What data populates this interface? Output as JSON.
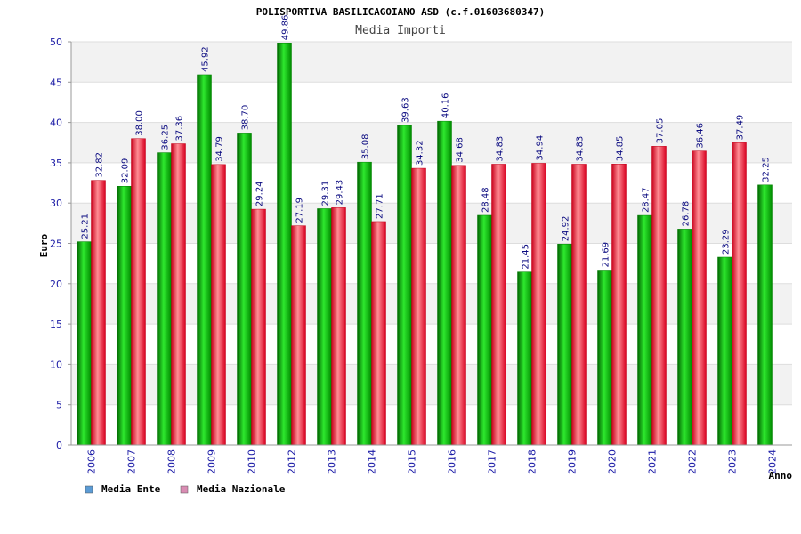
{
  "title": "POLISPORTIVA BASILICAGOIANO ASD (c.f.01603680347)",
  "chart_data": {
    "type": "bar",
    "title": "Media Importi",
    "xlabel": "Anno",
    "ylabel": "Euro",
    "ylim": [
      0,
      50
    ],
    "yticks": [
      0,
      5,
      10,
      15,
      20,
      25,
      30,
      35,
      40,
      45,
      50
    ],
    "grid": true,
    "legend_position": "bottom-left",
    "categories": [
      "2006",
      "2007",
      "2008",
      "2009",
      "2010",
      "2012",
      "2013",
      "2014",
      "2015",
      "2016",
      "2017",
      "2018",
      "2019",
      "2020",
      "2021",
      "2022",
      "2023",
      "2024"
    ],
    "series": [
      {
        "name": "Media Ente",
        "color": "#00c000",
        "legend_color": "#5b9bd5",
        "values": [
          25.21,
          32.09,
          36.25,
          45.92,
          38.7,
          49.86,
          29.31,
          35.08,
          39.63,
          40.16,
          28.48,
          21.45,
          24.92,
          21.69,
          28.47,
          26.78,
          23.29,
          32.25
        ],
        "labels": [
          "25.21",
          "32.09",
          "36.25",
          "45.92",
          "38.70",
          "49.86",
          "29.31",
          "35.08",
          "39.63",
          "40.16",
          "28.48",
          "21.45",
          "24.92",
          "21.69",
          "28.47",
          "26.78",
          "23.29",
          "32.25"
        ]
      },
      {
        "name": "Media Nazionale",
        "color": "#e00020",
        "legend_color": "#d98cb3",
        "values": [
          32.82,
          38.0,
          37.36,
          34.79,
          29.24,
          27.19,
          29.43,
          27.71,
          34.32,
          34.68,
          34.83,
          34.94,
          34.83,
          34.85,
          37.05,
          36.46,
          37.49,
          null
        ],
        "labels": [
          "32.82",
          "38.00",
          "37.36",
          "34.79",
          "29.24",
          "27.19",
          "29.43",
          "27.71",
          "34.32",
          "34.68",
          "34.83",
          "34.94",
          "34.83",
          "34.85",
          "37.05",
          "36.46",
          "37.49",
          null
        ]
      }
    ]
  }
}
